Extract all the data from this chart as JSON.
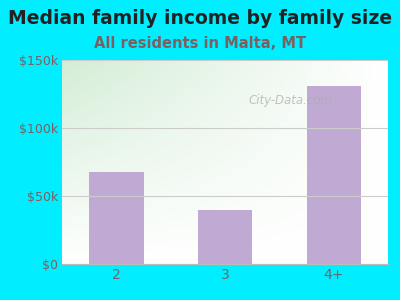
{
  "title": "Median family income by family size",
  "subtitle": "All residents in Malta, MT",
  "categories": [
    "2",
    "3",
    "4+"
  ],
  "values": [
    68000,
    40000,
    131000
  ],
  "bar_color": "#c0aad4",
  "title_fontsize": 13.5,
  "subtitle_fontsize": 10.5,
  "title_color": "#222222",
  "subtitle_color": "#7a6060",
  "tick_color": "#7a6060",
  "background_outer": "#00eeff",
  "background_inner_left": "#d4edd8",
  "background_inner_right": "#f0f8f0",
  "background_inner_bottom": "#e8f4ea",
  "ylim": [
    0,
    150000
  ],
  "yticks": [
    0,
    50000,
    100000,
    150000
  ],
  "ytick_labels": [
    "$0",
    "$50k",
    "$100k",
    "$150k"
  ],
  "watermark": "City-Data.com",
  "grid_color": "#cccccc"
}
